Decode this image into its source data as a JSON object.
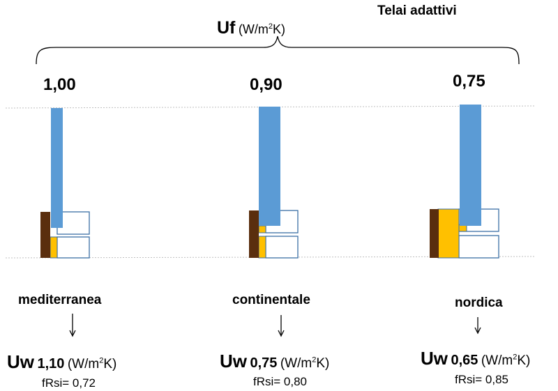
{
  "header": {
    "title": "Telai adattivi",
    "uf_label": "Uf",
    "uf_unit_prefix": "(W/m",
    "uf_unit_sup": "2",
    "uf_unit_suffix": "K)"
  },
  "profiles": [
    {
      "uf_value": "1,00",
      "climate": "mediterranea",
      "uw_label": "Uw",
      "uw_value": "1,10",
      "uw_unit_prefix": "(W/m",
      "uw_unit_sup": "2",
      "uw_unit_suffix": "K)",
      "frsi": "fRsi= 0,72"
    },
    {
      "uf_value": "0,90",
      "climate": "continentale",
      "uw_label": "Uw",
      "uw_value": "0,75",
      "uw_unit_prefix": "(W/m",
      "uw_unit_sup": "2",
      "uw_unit_suffix": "K)",
      "frsi": "fRsi= 0,80"
    },
    {
      "uf_value": "0,75",
      "climate": "nordica",
      "uw_label": "Uw",
      "uw_value": "0,65",
      "uw_unit_prefix": "(W/m",
      "uw_unit_sup": "2",
      "uw_unit_suffix": "K)",
      "frsi": "fRsi= 0,85"
    }
  ],
  "colors": {
    "glass": "#5b9bd5",
    "wood": "#5a2e0e",
    "insulation": "#ffc000",
    "frame_outline": "#3a6ea5",
    "guide_line": "#bfbfbf"
  }
}
